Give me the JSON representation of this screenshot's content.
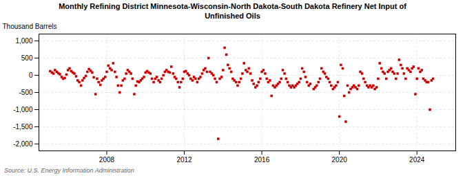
{
  "chart_data": {
    "type": "scatter",
    "title": "Monthly Refining District Minnesota-Wisconsin-North Dakota-South Dakota Refinery Net Input of\nUnfinished Oils",
    "ylabel": "Thousand Barrels",
    "source": "Source: U.S. Energy Information Administration",
    "color": "#cc0000",
    "marker": "square",
    "grid": true,
    "xlim": [
      2004.5,
      2026.0
    ],
    "ylim": [
      -2200,
      1200
    ],
    "xticks": [
      2008,
      2012,
      2016,
      2020,
      2024
    ],
    "yticks": [
      {
        "value": -2000,
        "label": "-2,000"
      },
      {
        "value": -1500,
        "label": "-1,500"
      },
      {
        "value": -1000,
        "label": "-1,000"
      },
      -500,
      0,
      500,
      {
        "value": 1000,
        "label": "1,000"
      }
    ],
    "x": [
      2005.08,
      2005.17,
      2005.25,
      2005.33,
      2005.42,
      2005.5,
      2005.58,
      2005.67,
      2005.75,
      2005.83,
      2005.92,
      2006.0,
      2006.08,
      2006.17,
      2006.25,
      2006.33,
      2006.42,
      2006.5,
      2006.58,
      2006.67,
      2006.75,
      2006.83,
      2006.92,
      2007.0,
      2007.08,
      2007.17,
      2007.25,
      2007.33,
      2007.42,
      2007.5,
      2007.58,
      2007.67,
      2007.75,
      2007.83,
      2007.92,
      2008.0,
      2008.08,
      2008.17,
      2008.25,
      2008.33,
      2008.42,
      2008.5,
      2008.58,
      2008.67,
      2008.75,
      2008.83,
      2008.92,
      2009.0,
      2009.08,
      2009.17,
      2009.25,
      2009.33,
      2009.42,
      2009.5,
      2009.58,
      2009.67,
      2009.75,
      2009.83,
      2009.92,
      2010.0,
      2010.08,
      2010.17,
      2010.25,
      2010.33,
      2010.42,
      2010.5,
      2010.58,
      2010.67,
      2010.75,
      2010.83,
      2010.92,
      2011.0,
      2011.08,
      2011.17,
      2011.25,
      2011.33,
      2011.42,
      2011.5,
      2011.58,
      2011.67,
      2011.75,
      2011.83,
      2011.92,
      2012.0,
      2012.08,
      2012.17,
      2012.25,
      2012.33,
      2012.42,
      2012.5,
      2012.58,
      2012.67,
      2012.75,
      2012.83,
      2012.92,
      2013.0,
      2013.08,
      2013.17,
      2013.25,
      2013.33,
      2013.42,
      2013.5,
      2013.58,
      2013.67,
      2013.75,
      2013.83,
      2013.92,
      2014.0,
      2014.08,
      2014.17,
      2014.25,
      2014.33,
      2014.42,
      2014.5,
      2014.58,
      2014.67,
      2014.75,
      2014.83,
      2014.92,
      2015.0,
      2015.08,
      2015.17,
      2015.25,
      2015.33,
      2015.42,
      2015.5,
      2015.58,
      2015.67,
      2015.75,
      2015.83,
      2015.92,
      2016.0,
      2016.08,
      2016.17,
      2016.25,
      2016.33,
      2016.42,
      2016.5,
      2016.58,
      2016.67,
      2016.75,
      2016.83,
      2016.92,
      2017.0,
      2017.08,
      2017.17,
      2017.25,
      2017.33,
      2017.42,
      2017.5,
      2017.58,
      2017.67,
      2017.75,
      2017.83,
      2017.92,
      2018.0,
      2018.08,
      2018.17,
      2018.25,
      2018.33,
      2018.42,
      2018.5,
      2018.67,
      2018.75,
      2018.83,
      2018.92,
      2019.0,
      2019.08,
      2019.17,
      2019.25,
      2019.33,
      2019.42,
      2019.5,
      2019.58,
      2019.67,
      2019.75,
      2019.83,
      2019.92,
      2020.0,
      2020.08,
      2020.17,
      2020.25,
      2020.33,
      2020.42,
      2020.5,
      2020.58,
      2020.67,
      2020.75,
      2020.83,
      2020.92,
      2021.0,
      2021.08,
      2021.17,
      2021.25,
      2021.33,
      2021.42,
      2021.5,
      2021.58,
      2021.67,
      2021.75,
      2021.83,
      2021.92,
      2022.0,
      2022.08,
      2022.17,
      2022.25,
      2022.33,
      2022.42,
      2022.5,
      2022.58,
      2022.67,
      2022.75,
      2022.83,
      2022.92,
      2023.0,
      2023.08,
      2023.17,
      2023.25,
      2023.33,
      2023.42,
      2023.5,
      2023.58,
      2023.67,
      2023.75,
      2023.83,
      2023.92,
      2024.0,
      2024.08,
      2024.17,
      2024.25,
      2024.33,
      2024.42,
      2024.5,
      2024.58,
      2024.67,
      2024.75,
      2024.83
    ],
    "values": [
      120,
      80,
      50,
      150,
      100,
      60,
      30,
      -50,
      -100,
      -80,
      20,
      150,
      200,
      120,
      80,
      50,
      -30,
      -150,
      -200,
      -300,
      -150,
      -80,
      -20,
      100,
      180,
      130,
      80,
      -60,
      -550,
      -100,
      -200,
      -280,
      -150,
      -100,
      -50,
      100,
      280,
      200,
      150,
      350,
      100,
      -50,
      -300,
      -500,
      -300,
      -150,
      -100,
      50,
      150,
      100,
      50,
      -100,
      -550,
      -300,
      -180,
      -200,
      -150,
      -100,
      -50,
      80,
      120,
      80,
      50,
      -100,
      -200,
      -100,
      -50,
      -150,
      -200,
      -100,
      0,
      100,
      150,
      100,
      80,
      250,
      50,
      -50,
      -100,
      -200,
      -350,
      -200,
      -100,
      100,
      120,
      50,
      0,
      -100,
      -150,
      -50,
      -100,
      -200,
      -100,
      -50,
      50,
      150,
      200,
      100,
      500,
      100,
      50,
      0,
      -100,
      -200,
      -1850,
      -100,
      -50,
      150,
      800,
      600,
      300,
      200,
      100,
      -100,
      -150,
      -200,
      -300,
      -200,
      -100,
      50,
      350,
      150,
      100,
      200,
      50,
      -150,
      -250,
      -350,
      -300,
      -200,
      -100,
      100,
      150,
      50,
      -100,
      -200,
      -150,
      -600,
      -300,
      -350,
      -300,
      -250,
      -200,
      -100,
      150,
      50,
      -100,
      -200,
      -300,
      -350,
      -300,
      -350,
      -300,
      -250,
      -200,
      -100,
      200,
      100,
      -50,
      -200,
      -300,
      -250,
      -400,
      -350,
      -300,
      -200,
      -100,
      200,
      100,
      50,
      -50,
      -100,
      -200,
      -300,
      -400,
      -350,
      -300,
      -200,
      -1200,
      300,
      200,
      -600,
      -1350,
      -300,
      -500,
      -400,
      -350,
      -300,
      -350,
      -400,
      -300,
      100,
      50,
      -100,
      -200,
      -300,
      -350,
      -300,
      -350,
      -300,
      -400,
      -350,
      -100,
      350,
      200,
      100,
      50,
      -100,
      100,
      150,
      200,
      100,
      50,
      -100,
      50,
      450,
      300,
      200,
      50,
      -100,
      200,
      150,
      100,
      200,
      250,
      -550,
      -100,
      200,
      100,
      150,
      -100,
      -150,
      -200,
      -200,
      -1000,
      -150,
      -100
    ]
  }
}
